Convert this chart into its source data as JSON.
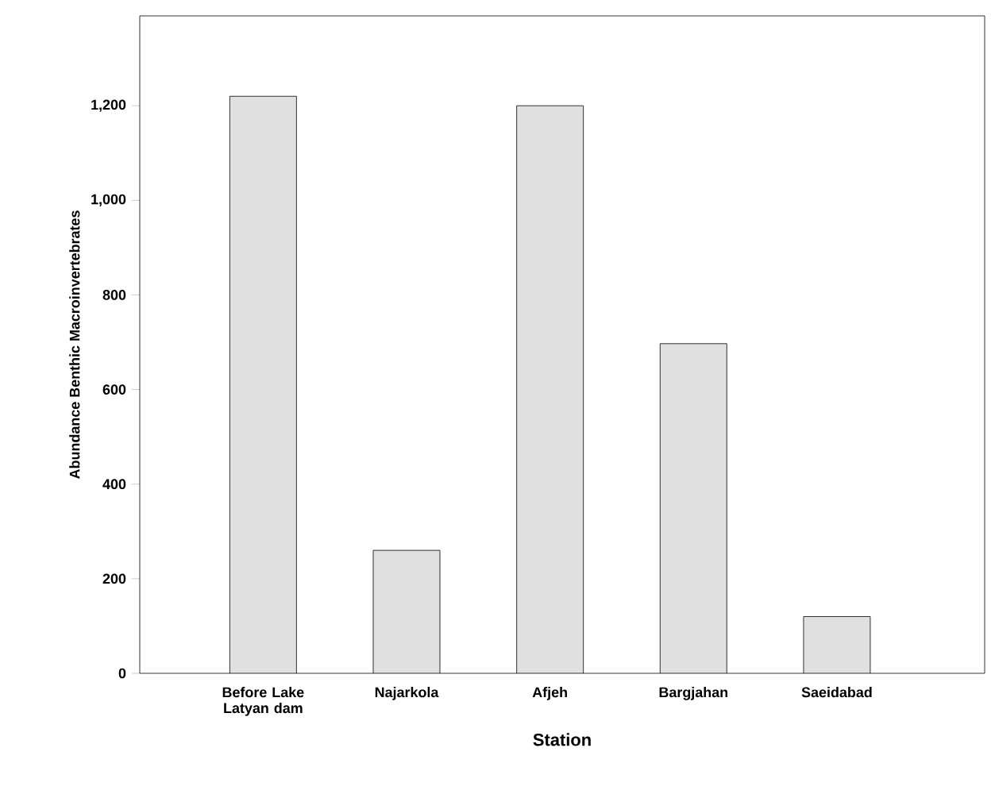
{
  "chart_data": {
    "type": "bar",
    "xlabel": "Station",
    "ylabel": "Abundance Benthic Macroinvertebrates",
    "categories": [
      "Before Lake Latyan dam",
      "Najarkola",
      "Afjeh",
      "Bargjahan",
      "Saeidabad"
    ],
    "values": [
      1220,
      260,
      1200,
      697,
      120
    ],
    "color": "#e0e0e0",
    "ylim": [
      0,
      1390
    ],
    "yticks": [
      0,
      200,
      400,
      600,
      800,
      {
        "value": 1000,
        "label": "1,000"
      },
      {
        "value": 1200,
        "label": "1,200"
      }
    ],
    "grid": false
  }
}
